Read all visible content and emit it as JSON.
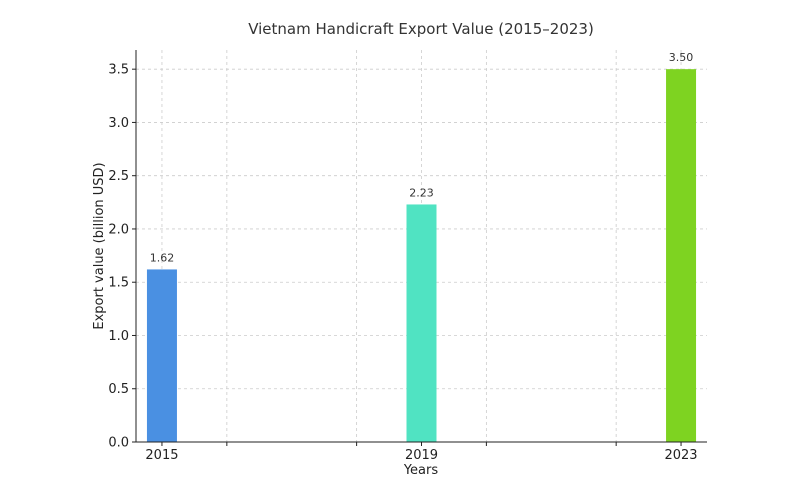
{
  "chart_data": {
    "type": "bar",
    "title": "Vietnam Handicraft Export Value (2015–2023)",
    "xlabel": "Years",
    "ylabel": "Export value (billion USD)",
    "categories": [
      "2015",
      "2019",
      "2023"
    ],
    "x": [
      2015,
      2019,
      2023
    ],
    "xlim": [
      2014.6,
      2023.4
    ],
    "values": [
      1.62,
      2.23,
      3.5
    ],
    "value_labels": [
      "1.62",
      "2.23",
      "3.50"
    ],
    "colors": [
      "#4a90e2",
      "#50e3c2",
      "#7ed321"
    ],
    "ylim": [
      0,
      3.68
    ],
    "yticks": [
      0.0,
      0.5,
      1.0,
      1.5,
      2.0,
      2.5,
      3.0,
      3.5
    ],
    "ytick_labels": [
      "0.0",
      "0.5",
      "1.0",
      "1.5",
      "2.0",
      "2.5",
      "3.0",
      "3.5"
    ],
    "xgrid": [
      2015,
      2016,
      2018,
      2019,
      2020,
      2022,
      2023
    ],
    "grid": true,
    "legend": "none"
  }
}
